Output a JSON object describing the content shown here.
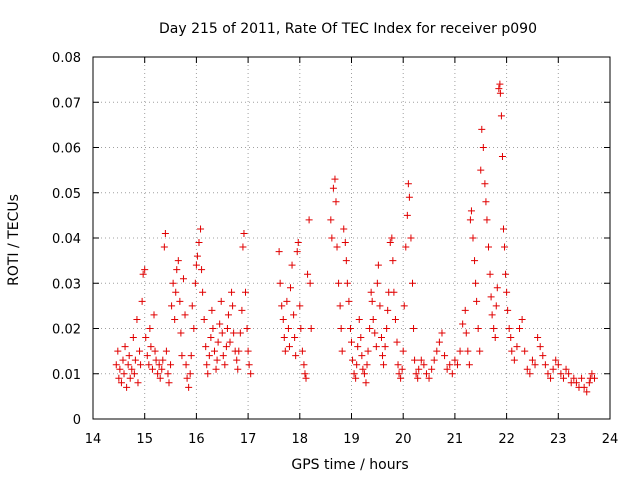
{
  "chart_data": {
    "type": "scatter",
    "title": "Day 215 of 2011, Rate Of TEC Index for receiver p090",
    "xlabel": "GPS time / hours",
    "ylabel": "ROTI / TECUs",
    "xlim": [
      14,
      24
    ],
    "ylim": [
      0,
      0.08
    ],
    "xticks": [
      "14",
      "15",
      "16",
      "17",
      "18",
      "19",
      "20",
      "21",
      "22",
      "23",
      "24"
    ],
    "yticks": [
      "0",
      "0.01",
      "0.02",
      "0.03",
      "0.04",
      "0.05",
      "0.06",
      "0.07",
      "0.08"
    ],
    "grid": true,
    "marker": "plus",
    "color": "#e00000",
    "series": [
      {
        "points": [
          [
            14.45,
            0.012
          ],
          [
            14.48,
            0.015
          ],
          [
            14.5,
            0.009
          ],
          [
            14.52,
            0.011
          ],
          [
            14.55,
            0.008
          ],
          [
            14.58,
            0.013
          ],
          [
            14.6,
            0.01
          ],
          [
            14.62,
            0.016
          ],
          [
            14.65,
            0.007
          ],
          [
            14.68,
            0.012
          ],
          [
            14.7,
            0.014
          ],
          [
            14.72,
            0.009
          ],
          [
            14.75,
            0.011
          ],
          [
            14.78,
            0.018
          ],
          [
            14.8,
            0.01
          ],
          [
            14.82,
            0.013
          ],
          [
            14.85,
            0.022
          ],
          [
            14.87,
            0.008
          ],
          [
            14.9,
            0.015
          ],
          [
            14.92,
            0.012
          ],
          [
            14.95,
            0.026
          ],
          [
            14.97,
            0.032
          ],
          [
            15.0,
            0.033
          ],
          [
            15.02,
            0.018
          ],
          [
            15.05,
            0.014
          ],
          [
            15.08,
            0.012
          ],
          [
            15.1,
            0.02
          ],
          [
            15.12,
            0.016
          ],
          [
            15.15,
            0.011
          ],
          [
            15.18,
            0.023
          ],
          [
            15.2,
            0.015
          ],
          [
            15.22,
            0.013
          ],
          [
            15.25,
            0.01
          ],
          [
            15.28,
            0.012
          ],
          [
            15.3,
            0.009
          ],
          [
            15.33,
            0.011
          ],
          [
            15.35,
            0.013
          ],
          [
            15.38,
            0.038
          ],
          [
            15.4,
            0.041
          ],
          [
            15.42,
            0.015
          ],
          [
            15.45,
            0.01
          ],
          [
            15.47,
            0.008
          ],
          [
            15.5,
            0.012
          ],
          [
            15.52,
            0.025
          ],
          [
            15.55,
            0.03
          ],
          [
            15.58,
            0.022
          ],
          [
            15.6,
            0.028
          ],
          [
            15.62,
            0.033
          ],
          [
            15.65,
            0.035
          ],
          [
            15.68,
            0.026
          ],
          [
            15.7,
            0.019
          ],
          [
            15.72,
            0.014
          ],
          [
            15.75,
            0.031
          ],
          [
            15.78,
            0.023
          ],
          [
            15.8,
            0.012
          ],
          [
            15.82,
            0.009
          ],
          [
            15.85,
            0.007
          ],
          [
            15.88,
            0.01
          ],
          [
            15.9,
            0.014
          ],
          [
            15.92,
            0.025
          ],
          [
            15.95,
            0.02
          ],
          [
            15.98,
            0.03
          ],
          [
            16.0,
            0.034
          ],
          [
            16.02,
            0.036
          ],
          [
            16.05,
            0.039
          ],
          [
            16.08,
            0.042
          ],
          [
            16.1,
            0.033
          ],
          [
            16.12,
            0.028
          ],
          [
            16.15,
            0.022
          ],
          [
            16.18,
            0.016
          ],
          [
            16.2,
            0.012
          ],
          [
            16.22,
            0.01
          ],
          [
            16.25,
            0.014
          ],
          [
            16.28,
            0.018
          ],
          [
            16.3,
            0.024
          ],
          [
            16.32,
            0.02
          ],
          [
            16.35,
            0.015
          ],
          [
            16.38,
            0.011
          ],
          [
            16.4,
            0.013
          ],
          [
            16.42,
            0.017
          ],
          [
            16.45,
            0.021
          ],
          [
            16.48,
            0.026
          ],
          [
            16.5,
            0.019
          ],
          [
            16.52,
            0.014
          ],
          [
            16.55,
            0.012
          ],
          [
            16.58,
            0.016
          ],
          [
            16.6,
            0.02
          ],
          [
            16.62,
            0.023
          ],
          [
            16.65,
            0.017
          ],
          [
            16.68,
            0.028
          ],
          [
            16.7,
            0.025
          ],
          [
            16.72,
            0.019
          ],
          [
            16.75,
            0.015
          ],
          [
            16.78,
            0.013
          ],
          [
            16.8,
            0.011
          ],
          [
            16.82,
            0.015
          ],
          [
            16.85,
            0.019
          ],
          [
            16.88,
            0.024
          ],
          [
            16.9,
            0.038
          ],
          [
            16.92,
            0.041
          ],
          [
            16.95,
            0.028
          ],
          [
            16.98,
            0.02
          ],
          [
            17.0,
            0.015
          ],
          [
            17.02,
            0.012
          ],
          [
            17.05,
            0.01
          ],
          [
            17.6,
            0.037
          ],
          [
            17.62,
            0.03
          ],
          [
            17.65,
            0.025
          ],
          [
            17.68,
            0.022
          ],
          [
            17.7,
            0.018
          ],
          [
            17.72,
            0.015
          ],
          [
            17.75,
            0.026
          ],
          [
            17.78,
            0.02
          ],
          [
            17.8,
            0.016
          ],
          [
            17.82,
            0.029
          ],
          [
            17.85,
            0.034
          ],
          [
            17.88,
            0.023
          ],
          [
            17.9,
            0.018
          ],
          [
            17.92,
            0.014
          ],
          [
            17.95,
            0.037
          ],
          [
            17.97,
            0.039
          ],
          [
            18.0,
            0.025
          ],
          [
            18.02,
            0.02
          ],
          [
            18.05,
            0.015
          ],
          [
            18.08,
            0.012
          ],
          [
            18.1,
            0.01
          ],
          [
            18.12,
            0.009
          ],
          [
            18.15,
            0.032
          ],
          [
            18.18,
            0.044
          ],
          [
            18.2,
            0.03
          ],
          [
            18.22,
            0.02
          ],
          [
            18.6,
            0.044
          ],
          [
            18.62,
            0.04
          ],
          [
            18.65,
            0.051
          ],
          [
            18.68,
            0.053
          ],
          [
            18.7,
            0.048
          ],
          [
            18.72,
            0.038
          ],
          [
            18.75,
            0.03
          ],
          [
            18.78,
            0.025
          ],
          [
            18.8,
            0.02
          ],
          [
            18.82,
            0.015
          ],
          [
            18.85,
            0.042
          ],
          [
            18.88,
            0.039
          ],
          [
            18.9,
            0.035
          ],
          [
            18.92,
            0.03
          ],
          [
            18.95,
            0.026
          ],
          [
            18.98,
            0.02
          ],
          [
            19.0,
            0.017
          ],
          [
            19.02,
            0.013
          ],
          [
            19.05,
            0.01
          ],
          [
            19.08,
            0.009
          ],
          [
            19.1,
            0.012
          ],
          [
            19.12,
            0.016
          ],
          [
            19.15,
            0.022
          ],
          [
            19.18,
            0.018
          ],
          [
            19.2,
            0.014
          ],
          [
            19.22,
            0.011
          ],
          [
            19.25,
            0.01
          ],
          [
            19.28,
            0.008
          ],
          [
            19.3,
            0.012
          ],
          [
            19.32,
            0.015
          ],
          [
            19.35,
            0.02
          ],
          [
            19.38,
            0.028
          ],
          [
            19.4,
            0.026
          ],
          [
            19.42,
            0.022
          ],
          [
            19.45,
            0.019
          ],
          [
            19.48,
            0.016
          ],
          [
            19.5,
            0.03
          ],
          [
            19.52,
            0.034
          ],
          [
            19.55,
            0.025
          ],
          [
            19.58,
            0.018
          ],
          [
            19.6,
            0.014
          ],
          [
            19.62,
            0.012
          ],
          [
            19.65,
            0.016
          ],
          [
            19.68,
            0.02
          ],
          [
            19.7,
            0.024
          ],
          [
            19.72,
            0.028
          ],
          [
            19.75,
            0.039
          ],
          [
            19.78,
            0.04
          ],
          [
            19.8,
            0.035
          ],
          [
            19.82,
            0.028
          ],
          [
            19.85,
            0.022
          ],
          [
            19.88,
            0.017
          ],
          [
            19.9,
            0.012
          ],
          [
            19.92,
            0.01
          ],
          [
            19.95,
            0.009
          ],
          [
            19.98,
            0.011
          ],
          [
            20.0,
            0.015
          ],
          [
            20.02,
            0.025
          ],
          [
            20.05,
            0.038
          ],
          [
            20.08,
            0.045
          ],
          [
            20.1,
            0.052
          ],
          [
            20.12,
            0.049
          ],
          [
            20.15,
            0.04
          ],
          [
            20.18,
            0.03
          ],
          [
            20.2,
            0.02
          ],
          [
            20.22,
            0.013
          ],
          [
            20.25,
            0.01
          ],
          [
            20.28,
            0.009
          ],
          [
            20.3,
            0.011
          ],
          [
            20.35,
            0.013
          ],
          [
            20.4,
            0.012
          ],
          [
            20.45,
            0.01
          ],
          [
            20.5,
            0.009
          ],
          [
            20.55,
            0.011
          ],
          [
            20.6,
            0.013
          ],
          [
            20.65,
            0.015
          ],
          [
            20.7,
            0.017
          ],
          [
            20.75,
            0.019
          ],
          [
            20.8,
            0.014
          ],
          [
            20.85,
            0.011
          ],
          [
            20.9,
            0.012
          ],
          [
            20.95,
            0.01
          ],
          [
            21.0,
            0.013
          ],
          [
            21.05,
            0.012
          ],
          [
            21.1,
            0.015
          ],
          [
            21.15,
            0.021
          ],
          [
            21.2,
            0.024
          ],
          [
            21.22,
            0.019
          ],
          [
            21.25,
            0.015
          ],
          [
            21.28,
            0.012
          ],
          [
            21.3,
            0.044
          ],
          [
            21.32,
            0.046
          ],
          [
            21.35,
            0.04
          ],
          [
            21.38,
            0.035
          ],
          [
            21.4,
            0.03
          ],
          [
            21.42,
            0.026
          ],
          [
            21.45,
            0.02
          ],
          [
            21.48,
            0.015
          ],
          [
            21.5,
            0.055
          ],
          [
            21.52,
            0.064
          ],
          [
            21.55,
            0.06
          ],
          [
            21.58,
            0.052
          ],
          [
            21.6,
            0.048
          ],
          [
            21.62,
            0.044
          ],
          [
            21.65,
            0.038
          ],
          [
            21.68,
            0.032
          ],
          [
            21.7,
            0.027
          ],
          [
            21.72,
            0.023
          ],
          [
            21.75,
            0.02
          ],
          [
            21.78,
            0.018
          ],
          [
            21.8,
            0.025
          ],
          [
            21.82,
            0.029
          ],
          [
            21.85,
            0.073
          ],
          [
            21.87,
            0.074
          ],
          [
            21.88,
            0.072
          ],
          [
            21.9,
            0.067
          ],
          [
            21.92,
            0.058
          ],
          [
            21.94,
            0.042
          ],
          [
            21.96,
            0.038
          ],
          [
            21.98,
            0.032
          ],
          [
            22.0,
            0.028
          ],
          [
            22.02,
            0.024
          ],
          [
            22.05,
            0.02
          ],
          [
            22.08,
            0.018
          ],
          [
            22.1,
            0.015
          ],
          [
            22.15,
            0.013
          ],
          [
            22.2,
            0.016
          ],
          [
            22.25,
            0.02
          ],
          [
            22.3,
            0.022
          ],
          [
            22.35,
            0.015
          ],
          [
            22.4,
            0.011
          ],
          [
            22.45,
            0.01
          ],
          [
            22.5,
            0.013
          ],
          [
            22.55,
            0.012
          ],
          [
            22.6,
            0.018
          ],
          [
            22.65,
            0.016
          ],
          [
            22.7,
            0.014
          ],
          [
            22.75,
            0.012
          ],
          [
            22.8,
            0.01
          ],
          [
            22.85,
            0.009
          ],
          [
            22.9,
            0.011
          ],
          [
            22.95,
            0.013
          ],
          [
            23.0,
            0.012
          ],
          [
            23.05,
            0.01
          ],
          [
            23.1,
            0.009
          ],
          [
            23.15,
            0.011
          ],
          [
            23.2,
            0.01
          ],
          [
            23.25,
            0.008
          ],
          [
            23.3,
            0.009
          ],
          [
            23.35,
            0.008
          ],
          [
            23.4,
            0.007
          ],
          [
            23.45,
            0.009
          ],
          [
            23.5,
            0.007
          ],
          [
            23.55,
            0.006
          ],
          [
            23.6,
            0.008
          ],
          [
            23.62,
            0.009
          ],
          [
            23.65,
            0.01
          ],
          [
            23.7,
            0.009
          ]
        ]
      }
    ]
  }
}
